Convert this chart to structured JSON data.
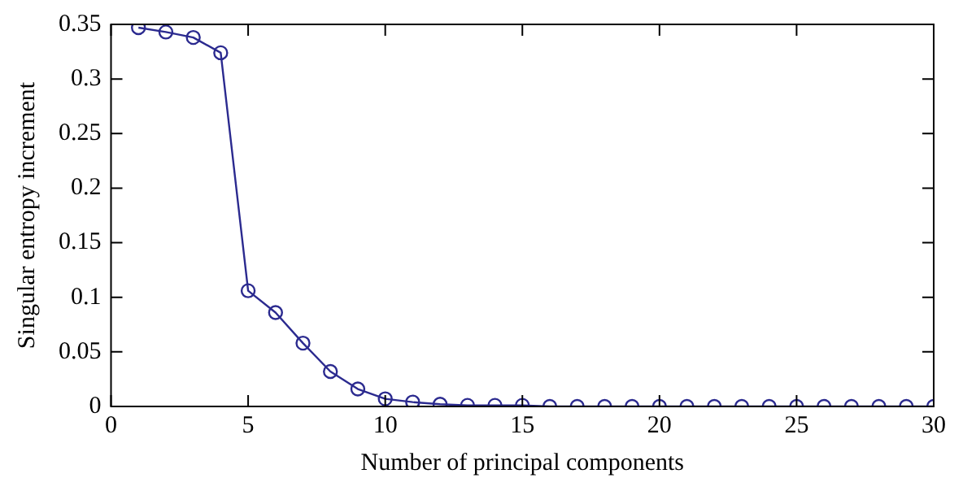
{
  "chart_data": {
    "type": "line",
    "xlabel": "Number of principal components",
    "ylabel": "Singular entropy increment",
    "x": [
      1,
      2,
      3,
      4,
      5,
      6,
      7,
      8,
      9,
      10,
      11,
      12,
      13,
      14,
      15,
      16,
      17,
      18,
      19,
      20,
      21,
      22,
      23,
      24,
      25,
      26,
      27,
      28,
      29,
      30
    ],
    "series": [
      {
        "color": "#2b2a8f",
        "values": [
          0.347,
          0.343,
          0.338,
          0.324,
          0.106,
          0.086,
          0.058,
          0.032,
          0.016,
          0.007,
          0.004,
          0.002,
          0.001,
          0.001,
          0.001,
          0,
          0,
          0,
          0,
          0,
          0,
          0,
          0,
          0,
          0,
          0,
          0,
          0,
          0,
          0
        ]
      }
    ],
    "xlim": [
      0,
      30
    ],
    "xticks": [
      0,
      5,
      10,
      15,
      20,
      25,
      30
    ],
    "ylim": [
      0,
      0.35
    ],
    "yticks": [
      0,
      0.05,
      0.1,
      0.15,
      0.2,
      0.25,
      0.3,
      0.35
    ],
    "marker": "circle",
    "line_style": "solid",
    "grid": false,
    "legend": false
  }
}
